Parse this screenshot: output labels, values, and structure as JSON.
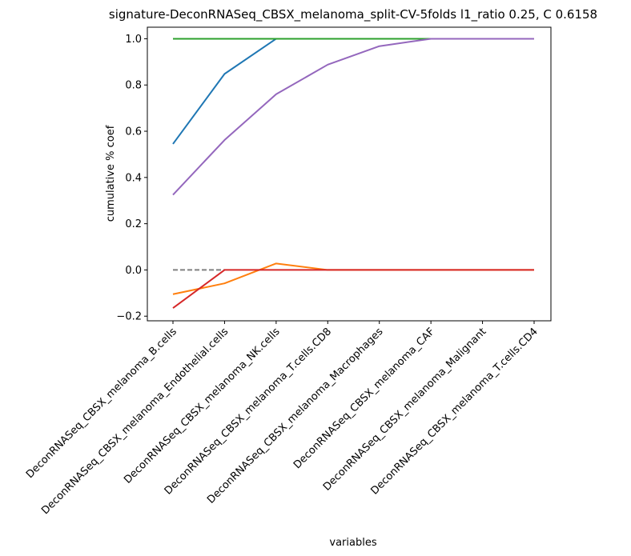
{
  "chart_data": {
    "type": "line",
    "title": "signature-DeconRNASeq_CBSX_melanoma_split-CV-5folds l1_ratio 0.25, C 0.6158",
    "xlabel": "variables",
    "ylabel": "cumulative % coef",
    "categories": [
      "DeconRNASeq_CBSX_melanoma_B.cells",
      "DeconRNASeq_CBSX_melanoma_Endothelial.cells",
      "DeconRNASeq_CBSX_melanoma_NK.cells",
      "DeconRNASeq_CBSX_melanoma_T.cells.CD8",
      "DeconRNASeq_CBSX_melanoma_Macrophages",
      "DeconRNASeq_CBSX_melanoma_CAF",
      "DeconRNASeq_CBSX_melanoma_Malignant",
      "DeconRNASeq_CBSX_melanoma_T.cells.CD4"
    ],
    "ylim": [
      -0.22,
      1.05
    ],
    "yticks": [
      -0.2,
      0.0,
      0.2,
      0.4,
      0.6,
      0.8,
      1.0
    ],
    "ytick_labels": [
      "−0.2",
      "0.0",
      "0.2",
      "0.4",
      "0.6",
      "0.8",
      "1.0"
    ],
    "grid": false,
    "legend": "none",
    "reference_line": {
      "y": 0.0,
      "x_from": 0,
      "x_to": 1,
      "color": "#808080",
      "style": "dashed"
    },
    "series": [
      {
        "color": "#1f77b4",
        "values": [
          0.545,
          0.848,
          1.0,
          1.0,
          1.0,
          1.0,
          1.0,
          1.0
        ]
      },
      {
        "color": "#ff7f0e",
        "values": [
          -0.105,
          -0.058,
          0.028,
          0.0,
          0.0,
          0.0,
          0.0,
          0.0
        ]
      },
      {
        "color": "#2ca02c",
        "values": [
          1.0,
          1.0,
          1.0,
          1.0,
          1.0,
          1.0,
          1.0,
          1.0
        ]
      },
      {
        "color": "#d62728",
        "values": [
          -0.165,
          0.0,
          0.0,
          0.0,
          0.0,
          0.0,
          0.0,
          0.0
        ]
      },
      {
        "color": "#9467bd",
        "values": [
          0.325,
          0.562,
          0.76,
          0.888,
          0.968,
          1.0,
          1.0,
          1.0
        ]
      }
    ]
  }
}
